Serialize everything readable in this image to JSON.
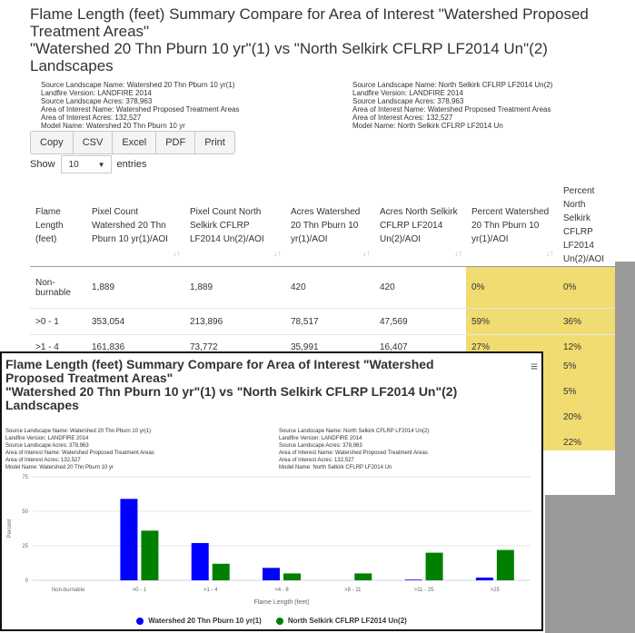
{
  "page": {
    "title_line1": "Flame Length (feet) Summary Compare for Area of Interest \"Watershed Proposed",
    "title_line2": "Treatment Areas\"",
    "title_line3": "\"Watershed 20 Thn Pburn 10 yr\"(1) vs \"North Selkirk CFLRP LF2014 Un\"(2)",
    "title_line4": "Landscapes"
  },
  "meta_left": {
    "source_landscape": "Source Landscape Name: Watershed 20 Thn Pburn 10 yr(1)",
    "landfire_version": "Landfire Version: LANDFIRE 2014",
    "source_acres": "Source Landscape Acres: 378,963",
    "aoi_name": "Area of Interest Name: Watershed Proposed Treatment Areas",
    "aoi_acres": "Area of Interest Acres: 132,527",
    "model_name": "Model Name: Watershed 20 Thn Pburn 10 yr"
  },
  "meta_right": {
    "source_landscape": "Source Landscape Name: North Selkirk CFLRP LF2014 Un(2)",
    "landfire_version": "Landfire Version: LANDFIRE 2014",
    "source_acres": "Source Landscape Acres: 378,963",
    "aoi_name": "Area of Interest Name: Watershed Proposed Treatment Areas",
    "aoi_acres": "Area of Interest Acres: 132,527",
    "model_name": "Model Name: North Selkirk CFLRP LF2014 Un"
  },
  "export_buttons": {
    "copy": "Copy",
    "csv": "CSV",
    "excel": "Excel",
    "pdf": "PDF",
    "print": "Print"
  },
  "length_control": {
    "show_label": "Show",
    "selected": "10",
    "entries_label": "entries"
  },
  "table": {
    "headers": {
      "flame": "Flame Length (feet)",
      "pixel1": "Pixel Count Watershed 20 Thn Pburn 10 yr(1)/AOI",
      "pixel2": "Pixel Count North Selkirk CFLRP LF2014 Un(2)/AOI",
      "acres1": "Acres Watershed 20 Thn Pburn 10 yr(1)/AOI",
      "acres2": "Acres North Selkirk CFLRP LF2014 Un(2)/AOI",
      "pct1": "Percent Watershed 20 Thn Pburn 10 yr(1)/AOI",
      "pct2": "Percent North Selkirk CFLRP LF2014 Un(2)/AOI"
    },
    "sort_glyph": "↓↑",
    "rows": [
      {
        "flame": "Non-burnable",
        "pixel1": "1,889",
        "pixel2": "1,889",
        "acres1": "420",
        "acres2": "420",
        "pct1": "0%",
        "pct2": "0%"
      },
      {
        "flame": ">0 - 1",
        "pixel1": "353,054",
        "pixel2": "213,896",
        "acres1": "78,517",
        "acres2": "47,569",
        "pct1": "59%",
        "pct2": "36%"
      },
      {
        "flame": ">1 - 4",
        "pixel1": "161,836",
        "pixel2": "73,772",
        "acres1": "35,991",
        "acres2": "16,407",
        "pct1": "27%",
        "pct2": "12%"
      }
    ],
    "hidden_pct2": [
      "5%",
      "5%",
      "20%",
      "22%"
    ]
  },
  "overlay": {
    "title_line1": "Flame Length (feet) Summary Compare for Area of Interest \"Watershed",
    "title_line2": "Proposed Treatment Areas\"",
    "title_line3": "\"Watershed 20 Thn Pburn 10 yr\"(1) vs \"North Selkirk CFLRP LF2014 Un\"(2)",
    "title_line4": "Landscapes",
    "menu_glyph": "≡",
    "icon": "hamburger-menu-icon"
  },
  "colors": {
    "series1": "#0000ff",
    "series2": "#008000",
    "highlight": "#f0dc70",
    "grid": "#e6e6e6"
  },
  "chart_data": {
    "type": "bar",
    "categories": [
      "Non-burnable",
      ">0 - 1",
      ">1 - 4",
      ">4 - 8",
      ">8 - 11",
      ">11 - 25",
      ">25"
    ],
    "series": [
      {
        "name": "Watershed 20 Thn Pburn 10 yr(1)",
        "values": [
          0,
          59,
          27,
          9,
          0,
          0.5,
          2
        ]
      },
      {
        "name": "North Selkirk CFLRP LF2014 Un(2)",
        "values": [
          0,
          36,
          12,
          5,
          5,
          20,
          22
        ]
      }
    ],
    "ylim": [
      0,
      75
    ],
    "yticks": [
      "0",
      "25",
      "50",
      "75"
    ],
    "ylabel": "Percent",
    "xlabel": "Flame Length (feet)",
    "legend_position": "bottom",
    "grid": true
  }
}
